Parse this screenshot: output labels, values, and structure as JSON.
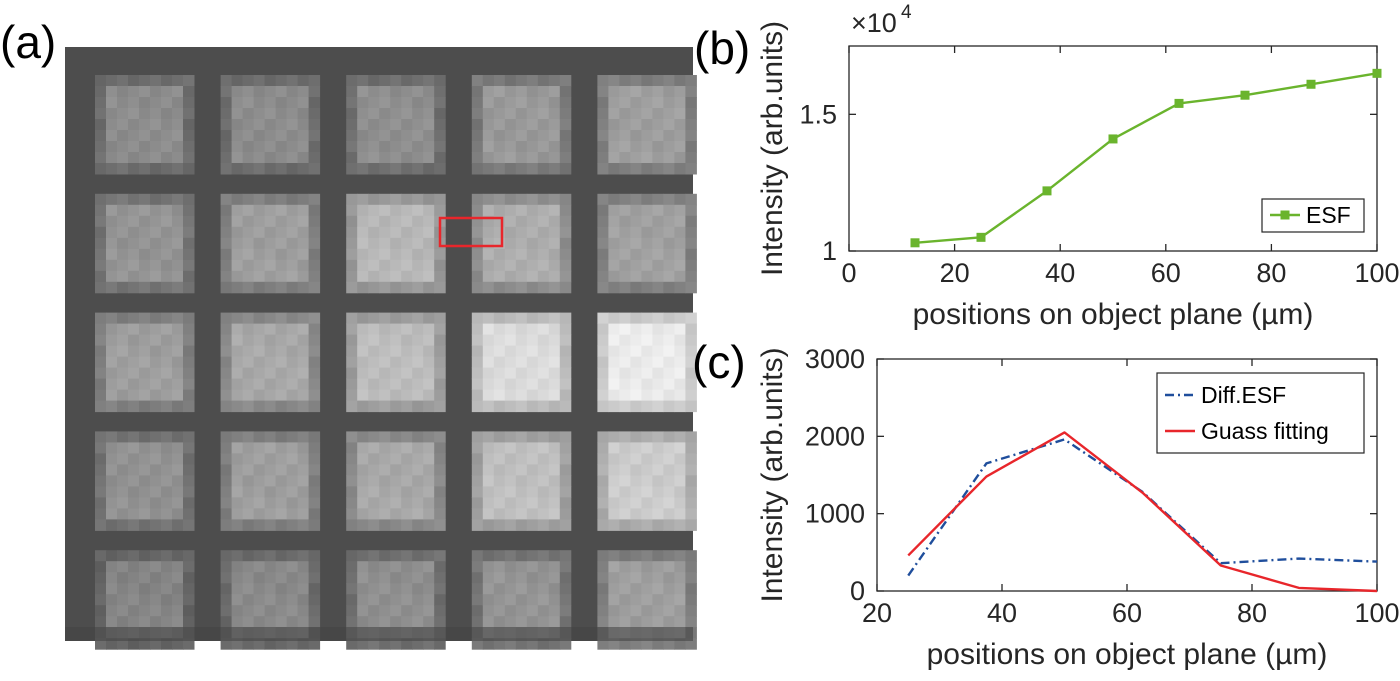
{
  "panels": {
    "a": {
      "label": "(a)"
    },
    "b": {
      "label": "(b)"
    },
    "c": {
      "label": "(c)"
    }
  },
  "image_panel": {
    "description_free_values": true,
    "grid_rows": 5,
    "grid_cols": 5,
    "cell_brightness": [
      [
        0.55,
        0.55,
        0.56,
        0.6,
        0.62
      ],
      [
        0.58,
        0.62,
        0.72,
        0.68,
        0.63
      ],
      [
        0.62,
        0.66,
        0.74,
        0.86,
        0.92
      ],
      [
        0.57,
        0.62,
        0.66,
        0.75,
        0.8
      ],
      [
        0.52,
        0.54,
        0.56,
        0.58,
        0.62
      ]
    ],
    "roi_color": "#e8262b"
  },
  "chart_data": [
    {
      "type": "line",
      "panel": "b",
      "title": "",
      "xlabel": "positions on object plane (µm)",
      "ylabel": "Intensity (arb.units)",
      "y_exponent_label": "×10",
      "y_exponent_power": "4",
      "xlim": [
        0,
        100
      ],
      "ylim": [
        10000,
        17500
      ],
      "xticks": [
        0,
        20,
        40,
        60,
        80,
        100
      ],
      "xtick_labels": [
        "0",
        "20",
        "40",
        "60",
        "80",
        "100"
      ],
      "yticks": [
        10000,
        15000
      ],
      "ytick_labels": [
        "1",
        "1.5"
      ],
      "grid": false,
      "legend_position": "bottom-right",
      "series": [
        {
          "name": "ESF",
          "color": "#6ab42d",
          "marker": "square",
          "x": [
            12.5,
            25,
            37.5,
            50,
            62.5,
            75,
            87.5,
            100
          ],
          "y": [
            10300,
            10500,
            12200,
            14100,
            15400,
            15700,
            16100,
            16500
          ]
        }
      ]
    },
    {
      "type": "line",
      "panel": "c",
      "title": "",
      "xlabel": "positions on object plane (µm)",
      "ylabel": "Intensity (arb.units)",
      "xlim": [
        20,
        100
      ],
      "ylim": [
        0,
        3000
      ],
      "xticks": [
        20,
        40,
        60,
        80,
        100
      ],
      "xtick_labels": [
        "20",
        "40",
        "60",
        "80",
        "100"
      ],
      "yticks": [
        0,
        1000,
        2000,
        3000
      ],
      "ytick_labels": [
        "0",
        "1000",
        "2000",
        "3000"
      ],
      "grid": false,
      "legend_position": "top-right",
      "series": [
        {
          "name": "Diff.ESF",
          "color": "#1f4e9c",
          "style": "dash-dot",
          "x": [
            25,
            37.5,
            50,
            62.5,
            75,
            87.5,
            100
          ],
          "y": [
            200,
            1650,
            1960,
            1280,
            360,
            420,
            380
          ]
        },
        {
          "name": "Guass fitting",
          "color": "#e8262b",
          "style": "solid",
          "x": [
            25,
            37.5,
            50,
            62.5,
            75,
            87.5,
            100
          ],
          "y": [
            460,
            1480,
            2050,
            1270,
            330,
            40,
            0
          ]
        }
      ]
    }
  ]
}
